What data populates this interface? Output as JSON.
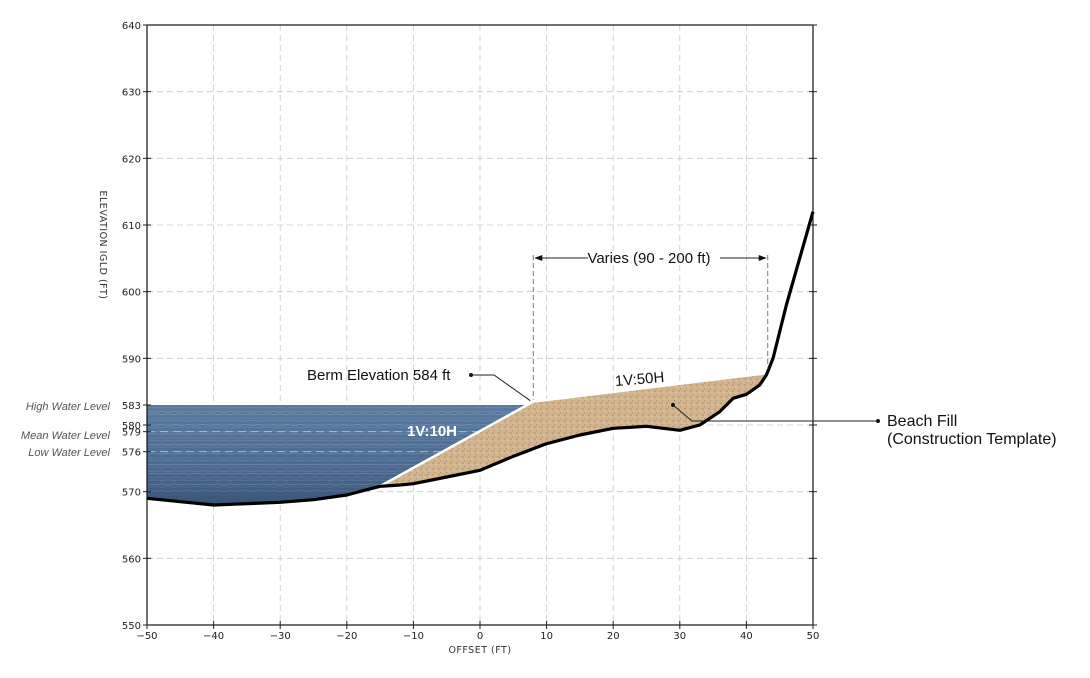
{
  "chart_data": {
    "type": "cross-section",
    "xlabel": "OFFSET (FT)",
    "ylabel": "ELEVATION IGLD (FT)",
    "xlim": [
      -50,
      50
    ],
    "ylim": [
      550,
      640
    ],
    "x_ticks": [
      -50,
      -40,
      -30,
      -20,
      -10,
      0,
      10,
      20,
      30,
      40,
      50
    ],
    "x_tick_labels": [
      "−50",
      "−40",
      "−30",
      "−20",
      "−10",
      "0",
      "10",
      "20",
      "30",
      "40",
      "50"
    ],
    "y_ticks": [
      550,
      560,
      570,
      580,
      590,
      600,
      610,
      620,
      630,
      640
    ],
    "grid": true,
    "water_levels": [
      {
        "name": "High Water Level",
        "elevation": 583
      },
      {
        "name": "Mean Water Level",
        "elevation": 579
      },
      {
        "name": "Low Water Level",
        "elevation": 576
      }
    ],
    "water_level_ticks": [
      "583",
      "579",
      "576"
    ],
    "existing_ground": {
      "x": [
        -50,
        -45,
        -40,
        -35,
        -30,
        -25,
        -20,
        -17,
        -15,
        -12,
        -10,
        -5,
        0,
        5,
        10,
        15,
        20,
        25,
        30,
        33,
        36,
        38,
        40,
        42,
        43,
        44,
        46,
        48,
        50
      ],
      "y": [
        569,
        568.5,
        568,
        568.2,
        568.4,
        568.8,
        569.5,
        570.3,
        570.8,
        571.0,
        571.2,
        572.2,
        573.2,
        575.3,
        577.2,
        578.5,
        579.5,
        579.8,
        579.2,
        580,
        582,
        584,
        584.6,
        586,
        587.5,
        590,
        598,
        605,
        612
      ]
    },
    "beach_fill": {
      "x": [
        -16.5,
        8,
        43.2
      ],
      "y": [
        570,
        583.5,
        587.8
      ]
    },
    "annotations": {
      "berm": "Berm Elevation 584 ft",
      "varies": "Varies (90 - 200 ft)",
      "slope_upper": "1V:50H",
      "slope_lower": "1V:10H",
      "fill_line1": "Beach Fill",
      "fill_line2": "(Construction Template)"
    },
    "colors": {
      "water": "#4f6f93",
      "water_deep": "#3c5a7e",
      "sand": "#cfb08a",
      "ground": "#000000"
    }
  }
}
